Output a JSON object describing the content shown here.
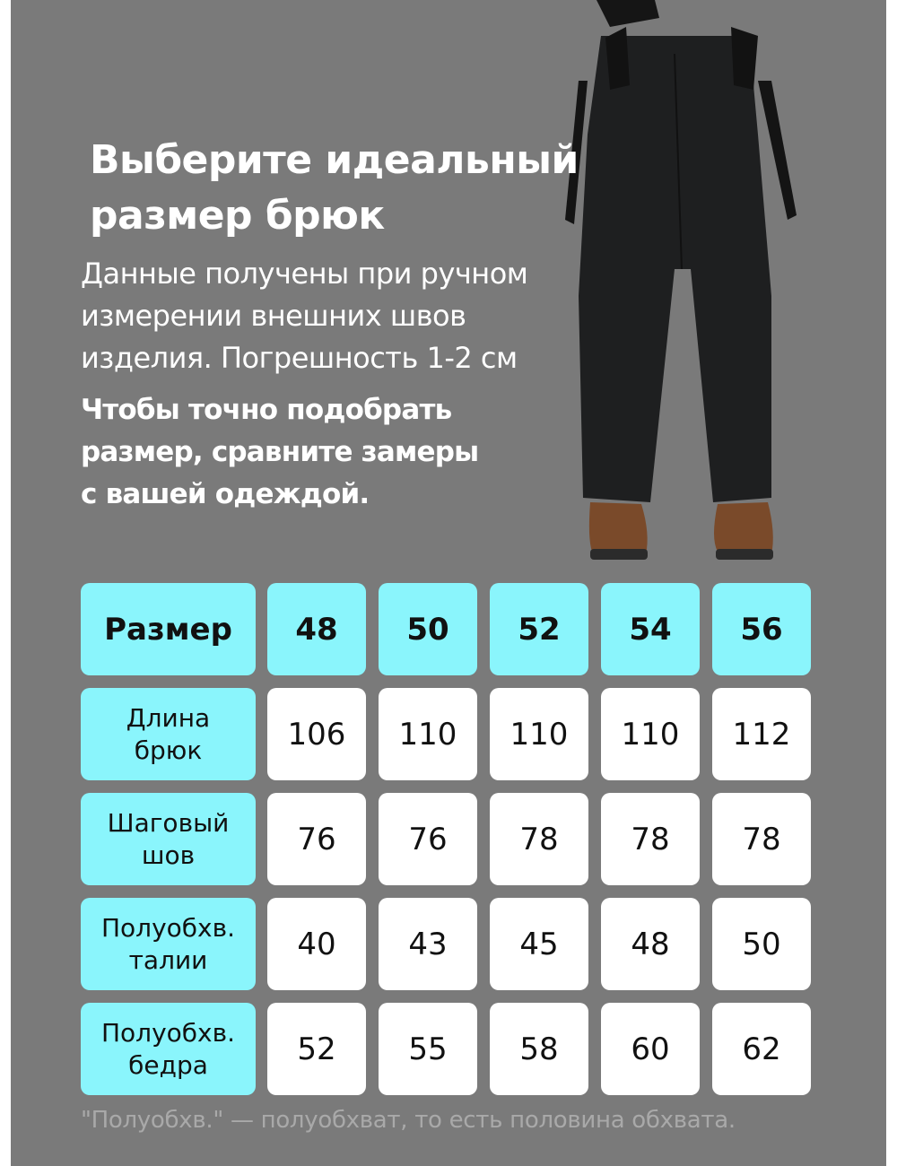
{
  "title": [
    "Выберите идеальный",
    "размер брюк"
  ],
  "description": [
    "Данные получены при ручном",
    "измерении внешних швов",
    "изделия. Погрешность 1-2 см"
  ],
  "note": [
    "Чтобы точно подобрать",
    "размер, сравните замеры",
    "с вашей одеждой."
  ],
  "colors": {
    "background": "#7a7a7a",
    "accent": "#8af5fc",
    "cell": "#ffffff"
  },
  "table": {
    "header_label": "Размер",
    "sizes": [
      "48",
      "50",
      "52",
      "54",
      "56"
    ],
    "rows": [
      {
        "label": [
          "Длина",
          "брюк"
        ],
        "values": [
          "106",
          "110",
          "110",
          "110",
          "112"
        ]
      },
      {
        "label": [
          "Шаговый",
          "шов"
        ],
        "values": [
          "76",
          "76",
          "78",
          "78",
          "78"
        ]
      },
      {
        "label": [
          "Полуобхв.",
          "талии"
        ],
        "values": [
          "40",
          "43",
          "45",
          "48",
          "50"
        ]
      },
      {
        "label": [
          "Полуобхв.",
          "бедра"
        ],
        "values": [
          "52",
          "55",
          "58",
          "60",
          "62"
        ]
      }
    ]
  },
  "footer": "\"Полуобхв.\" — полуобхват, то есть половина обхвата."
}
